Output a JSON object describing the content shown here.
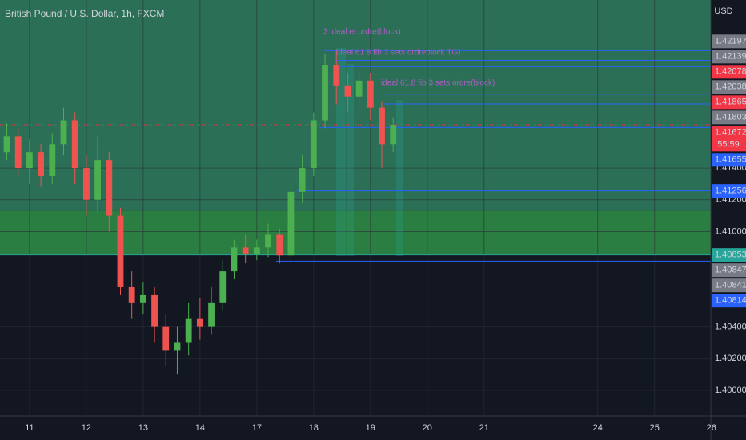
{
  "chart_data": {
    "type": "candlestick",
    "title": "British Pound / U.S. Dollar, 1h, FXCM",
    "currency": "USD",
    "countdown": "55:59",
    "up_color": "#4caf50",
    "down_color": "#ef5350",
    "grid": true,
    "xlim": [
      -0.52,
      11.99
    ],
    "xticks": [
      {
        "value": 0,
        "label": "11"
      },
      {
        "value": 1,
        "label": "12"
      },
      {
        "value": 2,
        "label": "13"
      },
      {
        "value": 3,
        "label": "14"
      },
      {
        "value": 4,
        "label": "17"
      },
      {
        "value": 5,
        "label": "18"
      },
      {
        "value": 6,
        "label": "19"
      },
      {
        "value": 7,
        "label": "20"
      },
      {
        "value": 8,
        "label": "21"
      },
      {
        "value": 10,
        "label": "24"
      },
      {
        "value": 11,
        "label": "25"
      },
      {
        "value": 12,
        "label": "26"
      }
    ],
    "ylim": [
      1.39839,
      1.42458
    ],
    "yticks": [
      {
        "value": 1.4,
        "label": "1.40000"
      },
      {
        "value": 1.402,
        "label": "1.40200"
      },
      {
        "value": 1.404,
        "label": "1.40400"
      },
      {
        "value": 1.41,
        "label": "1.41000"
      },
      {
        "value": 1.412,
        "label": "1.41200"
      },
      {
        "value": 1.414,
        "label": "1.41400"
      }
    ],
    "x": [
      -0.4,
      -0.2,
      0,
      0.2,
      0.4,
      0.6,
      0.8,
      1.0,
      1.2,
      1.4,
      1.6,
      1.8,
      2.0,
      2.2,
      2.4,
      2.6,
      2.8,
      3.0,
      3.2,
      3.4,
      3.6,
      3.8,
      4.0,
      4.2,
      4.4,
      4.6,
      4.8,
      5.0,
      5.2,
      5.4,
      5.6,
      5.8,
      6.0,
      6.2,
      6.4
    ],
    "open": [
      1.415,
      1.416,
      1.414,
      1.415,
      1.4135,
      1.4155,
      1.417,
      1.414,
      1.412,
      1.4145,
      1.411,
      1.4065,
      1.4055,
      1.406,
      1.404,
      1.4025,
      1.403,
      1.4045,
      1.404,
      1.4055,
      1.4075,
      1.409,
      1.4086,
      1.409,
      1.4098,
      1.4085,
      1.4125,
      1.414,
      1.417,
      1.4205,
      1.4192,
      1.4185,
      1.4195,
      1.4178,
      1.4155
    ],
    "high": [
      1.4168,
      1.4165,
      1.4158,
      1.4155,
      1.4162,
      1.4178,
      1.4175,
      1.4148,
      1.416,
      1.415,
      1.4115,
      1.4075,
      1.4068,
      1.4065,
      1.4048,
      1.404,
      1.4055,
      1.4058,
      1.4065,
      1.4082,
      1.4095,
      1.4098,
      1.4095,
      1.4105,
      1.4102,
      1.413,
      1.4148,
      1.4175,
      1.4212,
      1.4214,
      1.42,
      1.42,
      1.42,
      1.4182,
      1.4172
    ],
    "low": [
      1.4145,
      1.4135,
      1.413,
      1.4128,
      1.413,
      1.4148,
      1.413,
      1.411,
      1.4112,
      1.41,
      1.406,
      1.4045,
      1.4048,
      1.403,
      1.4015,
      1.401,
      1.4022,
      1.4032,
      1.4035,
      1.405,
      1.407,
      1.408,
      1.4082,
      1.4084,
      1.408,
      1.4082,
      1.4118,
      1.4135,
      1.4165,
      1.418,
      1.4175,
      1.4178,
      1.417,
      1.414,
      1.415
    ],
    "close": [
      1.416,
      1.414,
      1.415,
      1.4135,
      1.4155,
      1.417,
      1.414,
      1.412,
      1.4145,
      1.411,
      1.4065,
      1.4055,
      1.406,
      1.404,
      1.4025,
      1.403,
      1.4045,
      1.404,
      1.4055,
      1.4075,
      1.409,
      1.4086,
      1.409,
      1.4098,
      1.4085,
      1.4125,
      1.414,
      1.417,
      1.4205,
      1.4192,
      1.4185,
      1.4195,
      1.4178,
      1.4155,
      1.41672
    ],
    "zones": [
      {
        "low": 1.4113,
        "high": 1.42458,
        "color": "#2f7a5c"
      },
      {
        "low": 1.40853,
        "high": 1.4113,
        "color": "#2f8a45"
      }
    ],
    "current_price": 1.41672,
    "levels": [
      {
        "value": 1.42197,
        "color": "#787b86"
      },
      {
        "value": 1.42139,
        "color": "#787b86",
        "start": 5.18
      },
      {
        "value": 1.42078,
        "color": "#f23645",
        "start": 5.4
      },
      {
        "value": 1.42038,
        "color": "#787b86",
        "start": 5.46
      },
      {
        "value": 1.41865,
        "color": "#f23645",
        "start": 6.24
      },
      {
        "value": 1.41803,
        "color": "#787b86",
        "start": 6.24
      },
      {
        "value": 1.41672,
        "color": "#f23645"
      },
      {
        "value": 1.41655,
        "color": "#2962ff",
        "start": 5.1
      },
      {
        "value": 1.41256,
        "color": "#2962ff",
        "start": 4.7
      },
      {
        "value": 1.40853,
        "color": "#26a69a",
        "start": -0.52
      },
      {
        "value": 1.40847,
        "color": "#787b86"
      },
      {
        "value": 1.40841,
        "color": "#787b86"
      },
      {
        "value": 1.40814,
        "color": "#2962ff",
        "start": 4.34
      }
    ],
    "annotations": [
      "3 ideal et ordre(block)",
      "ideal 61.8 fib 3 sets ordreblock TG)",
      "ideal 61.8 fib 3 sets ordre(block)"
    ]
  }
}
